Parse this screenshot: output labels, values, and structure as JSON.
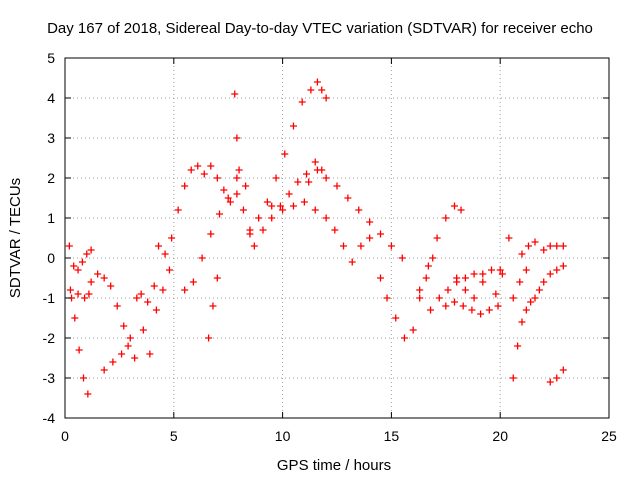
{
  "chart_data": {
    "type": "scatter",
    "title": "Day 167 of 2018, Sidereal Day-to-day VTEC variation (SDTVAR) for receiver echo",
    "xlabel": "GPS time / hours",
    "ylabel": "SDTVAR / TECUs",
    "xlim": [
      0,
      25
    ],
    "ylim": [
      -4,
      5
    ],
    "xticks": [
      "0",
      "5",
      "10",
      "15",
      "20",
      "25"
    ],
    "yticks": [
      "-4",
      "-3",
      "-2",
      "-1",
      "0",
      "1",
      "2",
      "3",
      "4",
      "5"
    ],
    "grid": true,
    "marker": "+",
    "series_color": "#ff0000",
    "series": [
      {
        "name": "SDTVAR",
        "x": [
          0.2,
          0.4,
          0.6,
          0.8,
          1.0,
          1.2,
          0.25,
          0.45,
          0.65,
          0.85,
          1.05,
          0.3,
          0.6,
          0.9,
          1.1,
          1.2,
          1.5,
          1.8,
          2.1,
          2.4,
          2.7,
          3.0,
          1.8,
          2.2,
          2.6,
          2.9,
          3.2,
          3.3,
          3.6,
          3.9,
          4.2,
          4.5,
          4.8,
          3.5,
          3.8,
          4.1,
          4.3,
          4.6,
          4.9,
          5.2,
          5.5,
          5.8,
          6.1,
          6.4,
          6.7,
          7.0,
          7.3,
          7.6,
          7.9,
          8.2,
          8.5,
          5.5,
          5.9,
          6.3,
          6.7,
          7.1,
          7.5,
          7.9,
          8.3,
          6.6,
          6.8,
          7.0,
          7.8,
          7.9,
          8.0,
          8.5,
          8.9,
          9.3,
          9.7,
          10.1,
          10.5,
          10.9,
          11.3,
          11.6,
          11.8,
          12.0,
          8.7,
          9.1,
          9.5,
          9.9,
          10.3,
          10.7,
          11.1,
          11.5,
          11.8,
          12.0,
          9.5,
          10.0,
          10.5,
          11.0,
          11.5,
          12.0,
          11.2,
          11.6,
          12.5,
          13.0,
          13.5,
          14.0,
          14.5,
          15.0,
          15.5,
          12.4,
          12.8,
          13.2,
          13.6,
          14.0,
          14.5,
          14.8,
          15.2,
          15.6,
          16.0,
          16.3,
          16.6,
          16.9,
          16.3,
          16.7,
          17.1,
          17.5,
          17.9,
          18.2,
          16.8,
          17.2,
          17.6,
          18.0,
          18.4,
          18.8,
          19.2,
          19.6,
          20.0,
          17.5,
          17.9,
          18.3,
          18.7,
          19.1,
          19.5,
          19.9,
          18.0,
          18.4,
          18.8,
          19.2,
          19.8,
          20.1,
          20.4,
          20.6,
          20.8,
          21.0,
          21.2,
          21.4,
          21.6,
          21.8,
          22.0,
          22.3,
          22.6,
          22.9,
          20.6,
          20.9,
          21.2,
          21.0,
          21.3,
          21.6,
          22.0,
          22.3,
          22.6,
          22.9,
          22.3,
          22.6,
          22.9
        ],
        "y": [
          0.3,
          -0.2,
          -0.3,
          -0.1,
          0.1,
          0.2,
          -0.8,
          -1.5,
          -2.3,
          -3.0,
          -3.4,
          -1.0,
          -0.9,
          -1.0,
          -0.9,
          -0.6,
          -0.4,
          -0.5,
          -0.7,
          -1.2,
          -1.7,
          -2.0,
          -2.8,
          -2.6,
          -2.4,
          -2.2,
          -2.5,
          -1.0,
          -1.8,
          -2.4,
          -1.3,
          -0.8,
          -0.3,
          -0.9,
          -1.1,
          -0.7,
          0.3,
          0.1,
          0.5,
          1.2,
          1.8,
          2.2,
          2.3,
          2.1,
          2.3,
          2.0,
          1.7,
          1.4,
          1.6,
          1.2,
          0.7,
          -0.8,
          -0.6,
          0.0,
          0.6,
          1.1,
          1.5,
          2.0,
          1.8,
          -2.0,
          -1.2,
          -0.5,
          4.1,
          3.0,
          2.2,
          0.6,
          1.0,
          1.4,
          2.0,
          2.6,
          3.3,
          3.9,
          4.2,
          4.4,
          4.2,
          4.0,
          0.3,
          0.7,
          1.0,
          1.3,
          1.6,
          1.9,
          2.1,
          2.4,
          2.2,
          2.0,
          1.3,
          1.2,
          1.3,
          1.4,
          1.2,
          1.0,
          1.9,
          2.2,
          1.8,
          1.5,
          1.2,
          0.9,
          0.6,
          0.3,
          0.0,
          0.7,
          0.3,
          -0.1,
          0.3,
          0.5,
          -0.5,
          -1.0,
          -1.5,
          -2.0,
          -1.8,
          -1.0,
          -0.5,
          0.0,
          -0.8,
          -0.2,
          0.5,
          1.0,
          1.3,
          1.2,
          -1.3,
          -1.0,
          -0.8,
          -0.6,
          -0.5,
          -0.4,
          -0.4,
          -0.3,
          -0.3,
          -1.2,
          -1.1,
          -1.2,
          -1.3,
          -1.4,
          -1.3,
          -1.2,
          -0.5,
          -0.8,
          -1.0,
          -0.6,
          -0.9,
          -0.4,
          0.5,
          -3.0,
          -2.2,
          -1.6,
          -1.3,
          -1.1,
          -1.0,
          -0.8,
          -0.6,
          -0.4,
          -0.3,
          -0.2,
          -1.0,
          -0.6,
          -0.3,
          0.1,
          0.3,
          0.4,
          0.2,
          0.3,
          0.3,
          0.3,
          -3.1,
          -3.0,
          -2.8
        ]
      }
    ]
  }
}
